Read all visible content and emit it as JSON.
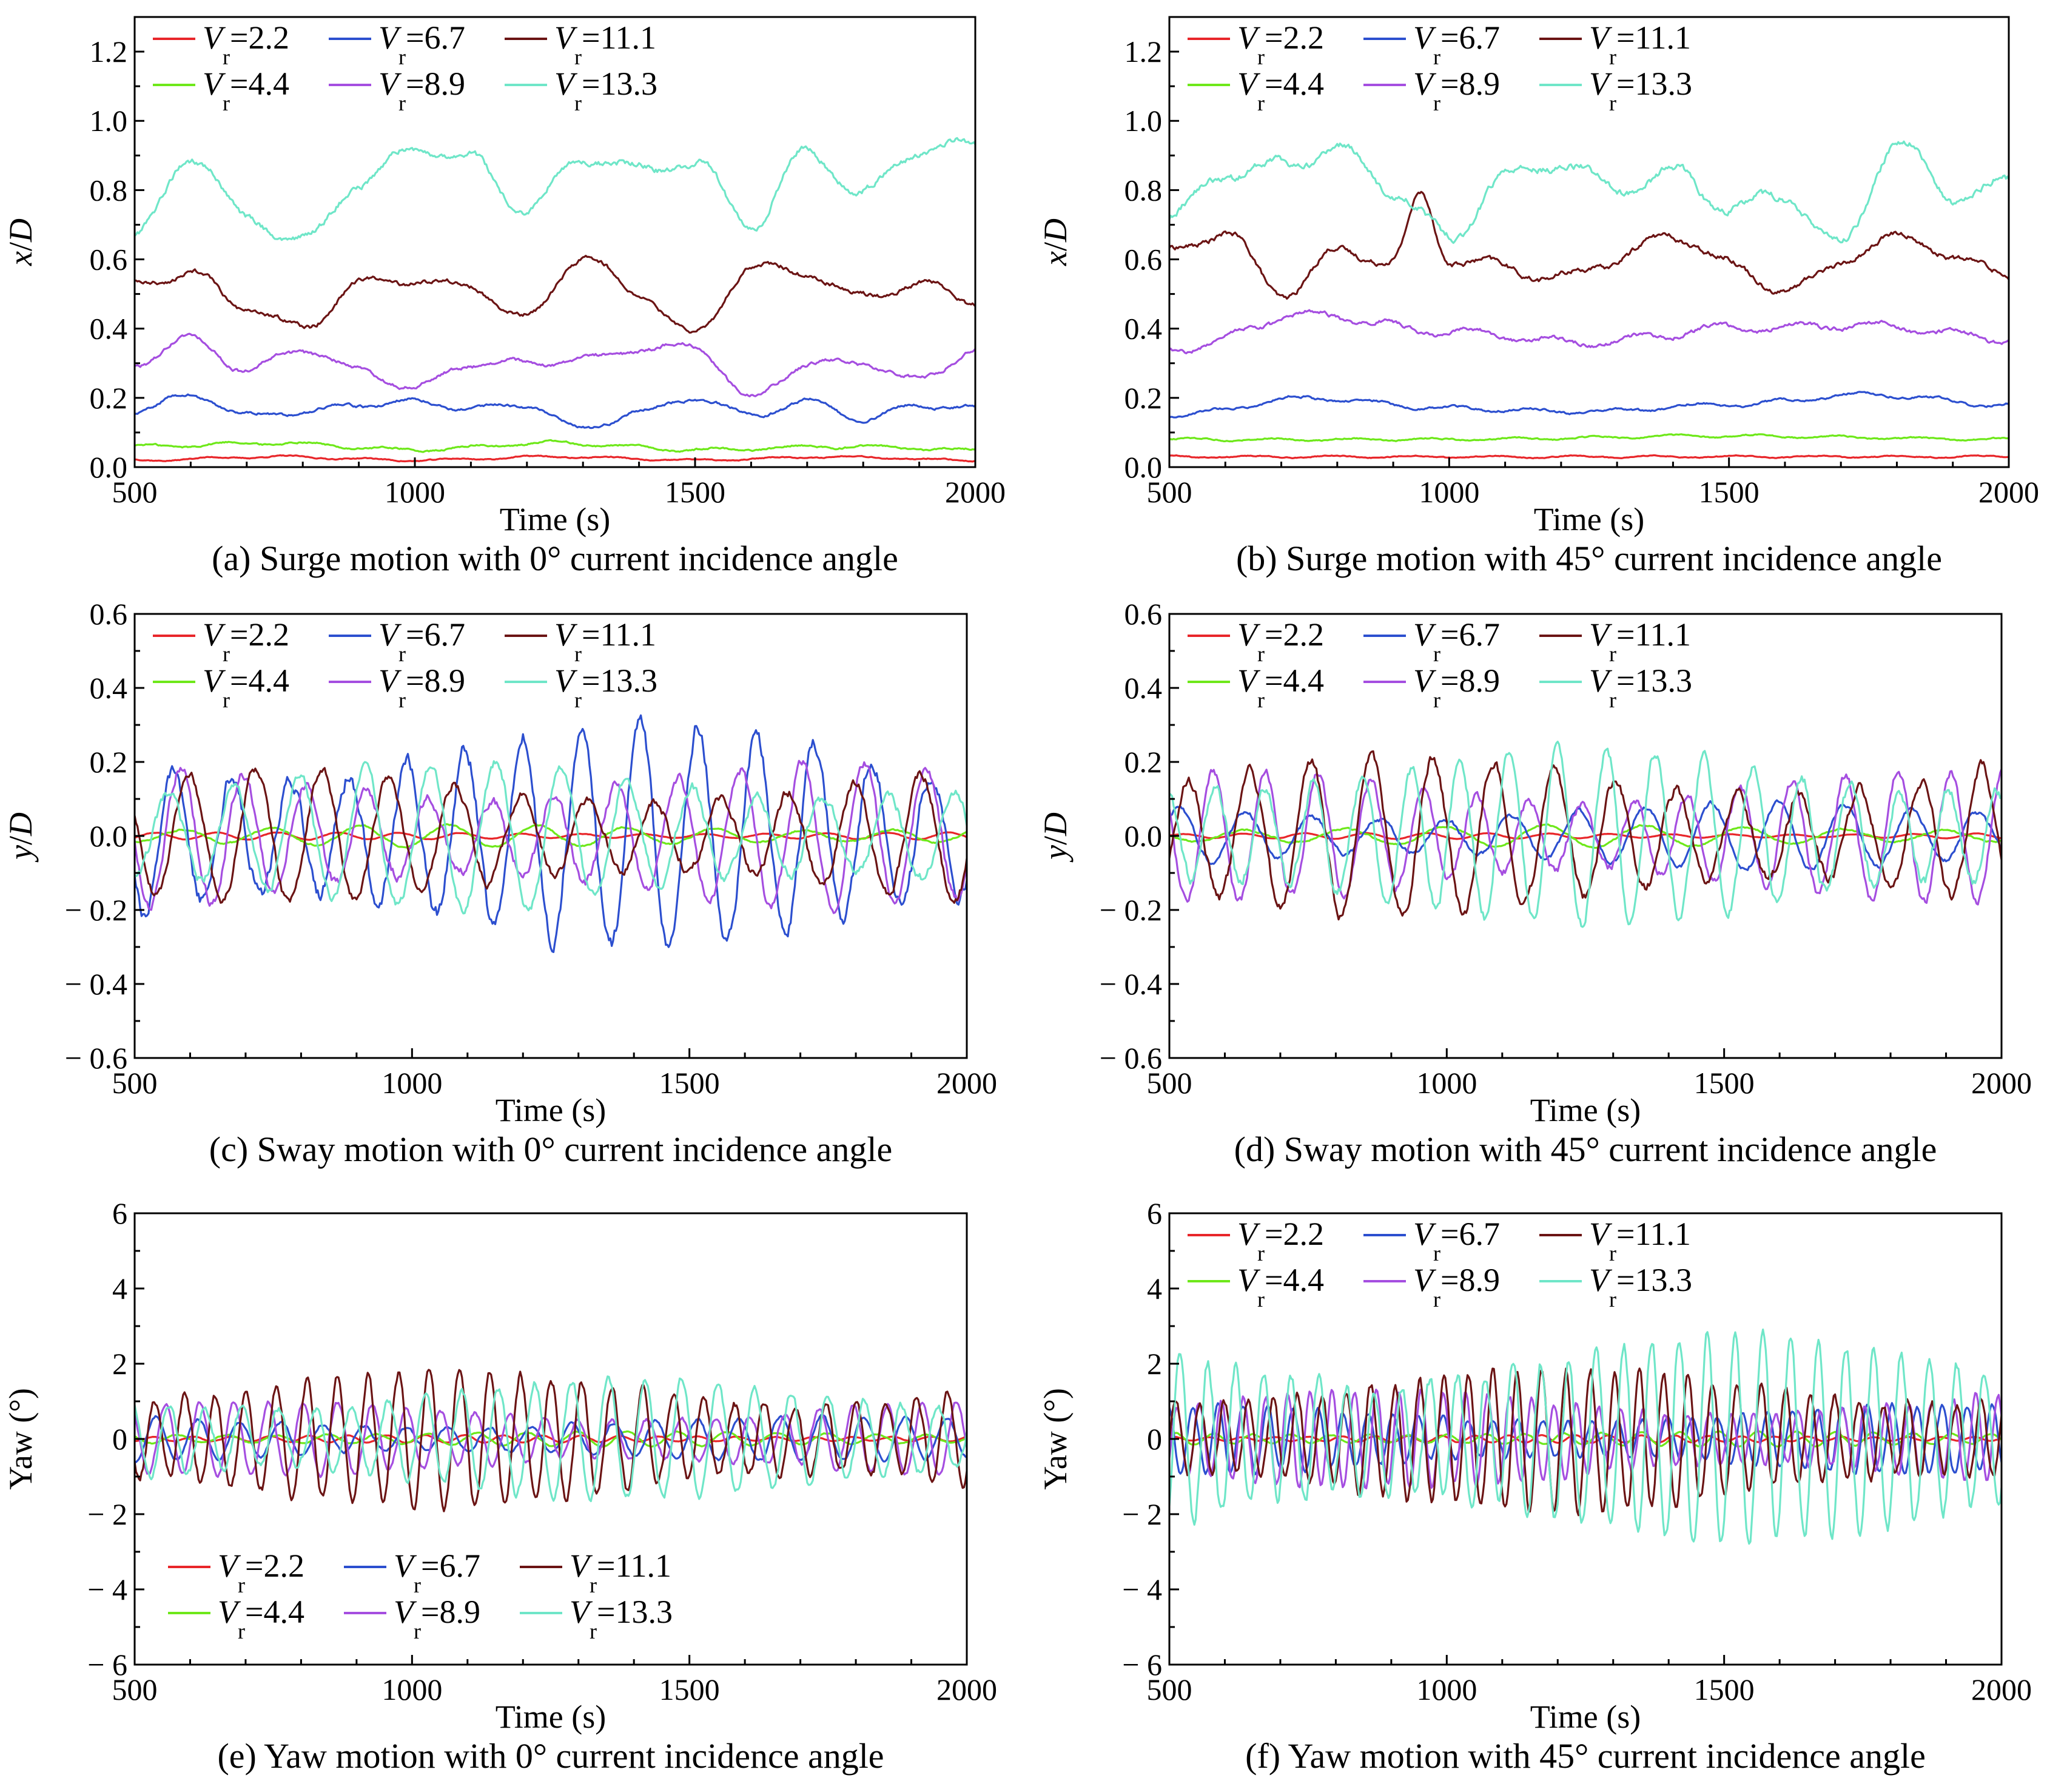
{
  "figure": {
    "panels": [
      {
        "id": "a",
        "caption": "(a) Surge motion with 0° current incidence angle",
        "ylabel": "x/D",
        "xlabel": "Time (s)",
        "xlim": [
          500,
          2000
        ],
        "ylim": [
          0,
          1.3
        ],
        "yticks": [
          0.0,
          0.2,
          0.4,
          0.6,
          0.8,
          1.0,
          1.2
        ],
        "ytick_labels": [
          "0.0",
          "0.2",
          "0.4",
          "0.6",
          "0.8",
          "1.0",
          "1.2"
        ],
        "xtick_labels": [
          "500",
          "1000",
          "1500",
          "2000"
        ],
        "legend": "top-left"
      },
      {
        "id": "b",
        "caption": "(b) Surge motion with 45° current incidence angle",
        "ylabel": "x/D",
        "xlabel": "Time (s)",
        "xlim": [
          500,
          2000
        ],
        "ylim": [
          0,
          1.3
        ],
        "yticks": [
          0.0,
          0.2,
          0.4,
          0.6,
          0.8,
          1.0,
          1.2
        ],
        "ytick_labels": [
          "0.0",
          "0.2",
          "0.4",
          "0.6",
          "0.8",
          "1.0",
          "1.2"
        ],
        "xtick_labels": [
          "500",
          "1000",
          "1500",
          "2000"
        ],
        "legend": "top-left"
      },
      {
        "id": "c",
        "caption": "(c) Sway motion with 0° current incidence angle",
        "ylabel": "y/D",
        "xlabel": "Time (s)",
        "xlim": [
          500,
          2000
        ],
        "ylim": [
          -0.6,
          0.6
        ],
        "yticks": [
          -0.6,
          -0.4,
          -0.2,
          0.0,
          0.2,
          0.4,
          0.6
        ],
        "ytick_labels": [
          "− 0.6",
          "− 0.4",
          "− 0.2",
          "0.0",
          "0.2",
          "0.4",
          "0.6"
        ],
        "xtick_labels": [
          "500",
          "1000",
          "1500",
          "2000"
        ],
        "legend": "top-left"
      },
      {
        "id": "d",
        "caption": "(d) Sway motion with 45° current incidence angle",
        "ylabel": "y/D",
        "xlabel": "Time (s)",
        "xlim": [
          500,
          2000
        ],
        "ylim": [
          -0.6,
          0.6
        ],
        "yticks": [
          -0.6,
          -0.4,
          -0.2,
          0.0,
          0.2,
          0.4,
          0.6
        ],
        "ytick_labels": [
          "− 0.6",
          "− 0.4",
          "− 0.2",
          "0.0",
          "0.2",
          "0.4",
          "0.6"
        ],
        "xtick_labels": [
          "500",
          "1000",
          "1500",
          "2000"
        ],
        "legend": "top-left"
      },
      {
        "id": "e",
        "caption": "(e) Yaw motion with 0° current incidence angle",
        "ylabel": "Yaw (°)",
        "xlabel": "Time (s)",
        "xlim": [
          500,
          2000
        ],
        "ylim": [
          -6,
          6
        ],
        "yticks": [
          -6,
          -4,
          -2,
          0,
          2,
          4,
          6
        ],
        "ytick_labels": [
          "− 6",
          "− 4",
          "− 2",
          "0",
          "2",
          "4",
          "6"
        ],
        "xtick_labels": [
          "500",
          "1000",
          "1500",
          "2000"
        ],
        "legend": "bottom-left"
      },
      {
        "id": "f",
        "caption": "(f) Yaw motion with 45° current incidence angle",
        "ylabel": "Yaw (°)",
        "xlabel": "Time (s)",
        "xlim": [
          500,
          2000
        ],
        "ylim": [
          -6,
          6
        ],
        "yticks": [
          -6,
          -4,
          -2,
          0,
          2,
          4,
          6
        ],
        "ytick_labels": [
          "− 6",
          "− 4",
          "− 2",
          "0",
          "2",
          "4",
          "6"
        ],
        "xtick_labels": [
          "500",
          "1000",
          "1500",
          "2000"
        ],
        "legend": "top-left"
      }
    ],
    "legend_entries": [
      {
        "symbol": "V",
        "sub": "r",
        "value": "=2.2",
        "color": "#e8262a"
      },
      {
        "symbol": "V",
        "sub": "r",
        "value": "=6.7",
        "color": "#2c4fcf"
      },
      {
        "symbol": "V",
        "sub": "r",
        "value": "=11.1",
        "color": "#6b1414"
      },
      {
        "symbol": "V",
        "sub": "r",
        "value": "=4.4",
        "color": "#6ee81a"
      },
      {
        "symbol": "V",
        "sub": "r",
        "value": "=8.9",
        "color": "#a54ee0"
      },
      {
        "symbol": "V",
        "sub": "r",
        "value": "=13.3",
        "color": "#6fe6c8"
      }
    ]
  },
  "chart_data": [
    {
      "panel": "a",
      "type": "line",
      "x_range": [
        500,
        2000
      ],
      "series": [
        {
          "name": "Vr=2.2",
          "color": "#e8262a",
          "kind": "level",
          "mean": 0.025,
          "amp": 0.012,
          "x": [
            500,
            750,
            1000,
            1250,
            1500,
            1750,
            2000
          ],
          "values": [
            0.02,
            0.03,
            0.02,
            0.03,
            0.02,
            0.03,
            0.02
          ]
        },
        {
          "name": "Vr=4.4",
          "color": "#6ee81a",
          "kind": "level",
          "mean": 0.06,
          "amp": 0.02,
          "x": [
            500,
            750,
            1000,
            1250,
            1500,
            1750,
            2000
          ],
          "values": [
            0.06,
            0.07,
            0.05,
            0.07,
            0.05,
            0.06,
            0.05
          ]
        },
        {
          "name": "Vr=6.7",
          "color": "#2c4fcf",
          "kind": "level",
          "mean": 0.17,
          "amp": 0.03,
          "x": [
            500,
            600,
            700,
            800,
            900,
            1000,
            1100,
            1200,
            1300,
            1400,
            1500,
            1600,
            1700,
            1800,
            1900,
            2000
          ],
          "values": [
            0.16,
            0.21,
            0.15,
            0.16,
            0.18,
            0.19,
            0.17,
            0.18,
            0.11,
            0.16,
            0.2,
            0.15,
            0.19,
            0.14,
            0.18,
            0.17
          ]
        },
        {
          "name": "Vr=8.9",
          "color": "#a54ee0",
          "kind": "level",
          "mean": 0.31,
          "amp": 0.04,
          "x": [
            500,
            600,
            700,
            800,
            900,
            1000,
            1100,
            1200,
            1300,
            1400,
            1500,
            1600,
            1700,
            1800,
            1900,
            2000
          ],
          "values": [
            0.3,
            0.37,
            0.28,
            0.34,
            0.28,
            0.23,
            0.3,
            0.3,
            0.31,
            0.34,
            0.35,
            0.2,
            0.3,
            0.3,
            0.25,
            0.34
          ]
        },
        {
          "name": "Vr=11.1",
          "color": "#6b1414",
          "kind": "level",
          "mean": 0.5,
          "amp": 0.05,
          "x": [
            500,
            600,
            700,
            800,
            900,
            1000,
            1100,
            1200,
            1300,
            1400,
            1500,
            1600,
            1700,
            1800,
            1900,
            2000
          ],
          "values": [
            0.53,
            0.56,
            0.46,
            0.4,
            0.53,
            0.54,
            0.52,
            0.43,
            0.61,
            0.5,
            0.38,
            0.58,
            0.56,
            0.49,
            0.53,
            0.48
          ]
        },
        {
          "name": "Vr=13.3",
          "color": "#6fe6c8",
          "kind": "level",
          "mean": 0.82,
          "amp": 0.07,
          "x": [
            500,
            600,
            700,
            800,
            900,
            1000,
            1100,
            1200,
            1300,
            1400,
            1500,
            1600,
            1700,
            1800,
            1900,
            2000
          ],
          "values": [
            0.66,
            0.9,
            0.72,
            0.65,
            0.82,
            0.92,
            0.89,
            0.74,
            0.9,
            0.86,
            0.88,
            0.7,
            0.91,
            0.79,
            0.92,
            0.93
          ]
        }
      ]
    },
    {
      "panel": "b",
      "type": "line",
      "x_range": [
        500,
        2000
      ],
      "series": [
        {
          "name": "Vr=2.2",
          "color": "#e8262a",
          "kind": "level",
          "mean": 0.03,
          "amp": 0.012,
          "x": [
            500,
            1000,
            1500,
            2000
          ],
          "values": [
            0.03,
            0.03,
            0.03,
            0.03
          ]
        },
        {
          "name": "Vr=4.4",
          "color": "#6ee81a",
          "kind": "level",
          "mean": 0.08,
          "amp": 0.015,
          "x": [
            500,
            1000,
            1500,
            2000
          ],
          "values": [
            0.08,
            0.08,
            0.09,
            0.08
          ]
        },
        {
          "name": "Vr=6.7",
          "color": "#2c4fcf",
          "kind": "level",
          "mean": 0.18,
          "amp": 0.025,
          "x": [
            500,
            750,
            1000,
            1250,
            1500,
            1750,
            2000
          ],
          "values": [
            0.15,
            0.2,
            0.17,
            0.16,
            0.18,
            0.21,
            0.18
          ]
        },
        {
          "name": "Vr=8.9",
          "color": "#a54ee0",
          "kind": "level",
          "mean": 0.38,
          "amp": 0.045,
          "x": [
            500,
            750,
            1000,
            1250,
            1500,
            1750,
            2000
          ],
          "values": [
            0.34,
            0.44,
            0.39,
            0.36,
            0.4,
            0.41,
            0.37
          ]
        },
        {
          "name": "Vr=11.1",
          "color": "#6b1414",
          "kind": "level",
          "mean": 0.58,
          "amp": 0.06,
          "x": [
            500,
            600,
            700,
            800,
            900,
            950,
            1000,
            1200,
            1400,
            1600,
            1800,
            2000
          ],
          "values": [
            0.62,
            0.68,
            0.5,
            0.62,
            0.6,
            0.78,
            0.6,
            0.55,
            0.66,
            0.52,
            0.66,
            0.56
          ]
        },
        {
          "name": "Vr=13.3",
          "color": "#6fe6c8",
          "kind": "level",
          "mean": 0.8,
          "amp": 0.08,
          "x": [
            500,
            600,
            700,
            800,
            900,
            1000,
            1100,
            1200,
            1300,
            1400,
            1500,
            1600,
            1700,
            1800,
            1900,
            2000
          ],
          "values": [
            0.72,
            0.85,
            0.87,
            0.92,
            0.8,
            0.66,
            0.84,
            0.88,
            0.8,
            0.85,
            0.75,
            0.78,
            0.64,
            0.94,
            0.78,
            0.82
          ]
        }
      ]
    },
    {
      "panel": "c",
      "type": "line",
      "x_range": [
        500,
        2000
      ],
      "series": [
        {
          "name": "Vr=2.2",
          "color": "#e8262a",
          "kind": "osc",
          "mean": 0.0,
          "amp": 0.01,
          "period": 110
        },
        {
          "name": "Vr=4.4",
          "color": "#6ee81a",
          "kind": "osc",
          "mean": 0.0,
          "amp": 0.03,
          "period": 160
        },
        {
          "name": "Vr=6.7",
          "color": "#2c4fcf",
          "kind": "osc",
          "mean": 0.0,
          "amp": 0.31,
          "period": 105
        },
        {
          "name": "Vr=8.9",
          "color": "#a54ee0",
          "kind": "osc",
          "mean": 0.0,
          "amp": 0.2,
          "period": 112
        },
        {
          "name": "Vr=11.1",
          "color": "#6b1414",
          "kind": "osc",
          "mean": 0.0,
          "amp": 0.18,
          "period": 120
        },
        {
          "name": "Vr=13.3",
          "color": "#6fe6c8",
          "kind": "osc",
          "mean": 0.0,
          "amp": 0.2,
          "period": 118
        }
      ]
    },
    {
      "panel": "d",
      "type": "line",
      "x_range": [
        500,
        2000
      ],
      "series": [
        {
          "name": "Vr=2.2",
          "color": "#e8262a",
          "kind": "osc",
          "mean": 0.0,
          "amp": 0.008,
          "period": 110
        },
        {
          "name": "Vr=4.4",
          "color": "#6ee81a",
          "kind": "osc",
          "mean": 0.0,
          "amp": 0.03,
          "period": 180
        },
        {
          "name": "Vr=6.7",
          "color": "#2c4fcf",
          "kind": "osc",
          "mean": 0.0,
          "amp": 0.09,
          "period": 120
        },
        {
          "name": "Vr=8.9",
          "color": "#a54ee0",
          "kind": "osc",
          "mean": 0.0,
          "amp": 0.18,
          "period": 95
        },
        {
          "name": "Vr=11.1",
          "color": "#6b1414",
          "kind": "osc",
          "mean": 0.0,
          "amp": 0.22,
          "period": 110
        },
        {
          "name": "Vr=13.3",
          "color": "#6fe6c8",
          "kind": "osc",
          "mean": 0.0,
          "amp": 0.24,
          "period": 88
        }
      ]
    },
    {
      "panel": "e",
      "type": "line",
      "x_range": [
        500,
        2000
      ],
      "series": [
        {
          "name": "Vr=2.2",
          "color": "#e8262a",
          "kind": "osc",
          "mean": 0.0,
          "amp": 0.1,
          "period": 70
        },
        {
          "name": "Vr=4.4",
          "color": "#6ee81a",
          "kind": "osc",
          "mean": 0.0,
          "amp": 0.2,
          "period": 90
        },
        {
          "name": "Vr=6.7",
          "color": "#2c4fcf",
          "kind": "osc",
          "mean": 0.0,
          "amp": 0.6,
          "period": 75
        },
        {
          "name": "Vr=8.9",
          "color": "#a54ee0",
          "kind": "osc",
          "mean": 0.0,
          "amp": 1.0,
          "period": 62
        },
        {
          "name": "Vr=11.1",
          "color": "#6b1414",
          "kind": "osc",
          "mean": 0.0,
          "amp": 1.8,
          "period": 55
        },
        {
          "name": "Vr=13.3",
          "color": "#6fe6c8",
          "kind": "osc",
          "mean": 0.0,
          "amp": 1.6,
          "period": 66
        }
      ]
    },
    {
      "panel": "f",
      "type": "line",
      "x_range": [
        500,
        2000
      ],
      "series": [
        {
          "name": "Vr=2.2",
          "color": "#e8262a",
          "kind": "osc",
          "mean": 0.0,
          "amp": 0.1,
          "period": 60
        },
        {
          "name": "Vr=4.4",
          "color": "#6ee81a",
          "kind": "osc",
          "mean": 0.0,
          "amp": 0.2,
          "period": 70
        },
        {
          "name": "Vr=6.7",
          "color": "#2c4fcf",
          "kind": "osc",
          "mean": 0.0,
          "amp": 0.9,
          "period": 45
        },
        {
          "name": "Vr=8.9",
          "color": "#a54ee0",
          "kind": "osc",
          "mean": 0.0,
          "amp": 1.3,
          "period": 40
        },
        {
          "name": "Vr=11.1",
          "color": "#6b1414",
          "kind": "osc",
          "mean": 0.0,
          "amp": 1.9,
          "period": 44
        },
        {
          "name": "Vr=13.3",
          "color": "#6fe6c8",
          "kind": "osc",
          "mean": 0.0,
          "amp": 2.8,
          "period": 50
        }
      ]
    }
  ]
}
